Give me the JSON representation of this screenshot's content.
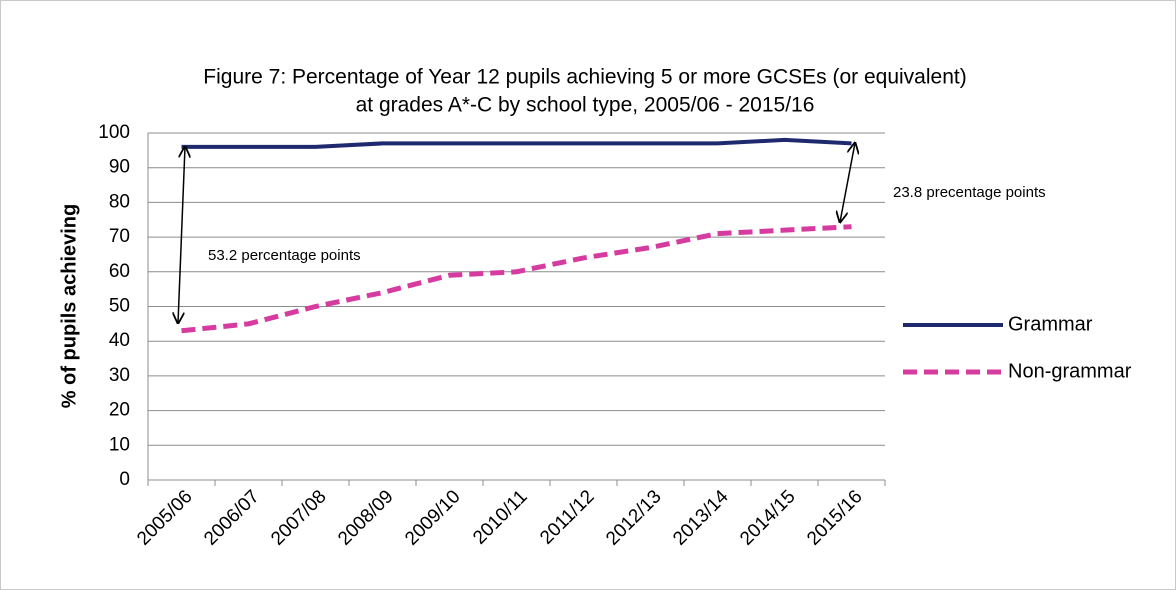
{
  "chart_data": {
    "type": "line",
    "title": "Figure 7: Percentage of Year 12 pupils achieving 5 or more GCSEs (or equivalent)",
    "subtitle": "at grades A*-C by school type, 2005/06 - 2015/16",
    "y_label": "% of pupils achieving",
    "categories": [
      "2005/06",
      "2006/07",
      "2007/08",
      "2008/09",
      "2009/10",
      "2010/11",
      "2011/12",
      "2012/13",
      "2013/14",
      "2014/15",
      "2015/16"
    ],
    "series": [
      {
        "name": "Grammar",
        "color": "#1f2a6e",
        "dash": "solid",
        "values": [
          96,
          96,
          96,
          97,
          97,
          97,
          97,
          97,
          97,
          98,
          97
        ]
      },
      {
        "name": "Non-grammar",
        "color": "#d63ca0",
        "dash": "dashed",
        "values": [
          43,
          45,
          50,
          54,
          59,
          60,
          64,
          67,
          71,
          72,
          73
        ]
      }
    ],
    "annotations": [
      "53.2 percentage points",
      "23.8 precentage points"
    ],
    "ylim": [
      0,
      100
    ],
    "yticks": [
      0,
      10,
      20,
      30,
      40,
      50,
      60,
      70,
      80,
      90,
      100
    ],
    "grid": true,
    "legend": "right"
  }
}
